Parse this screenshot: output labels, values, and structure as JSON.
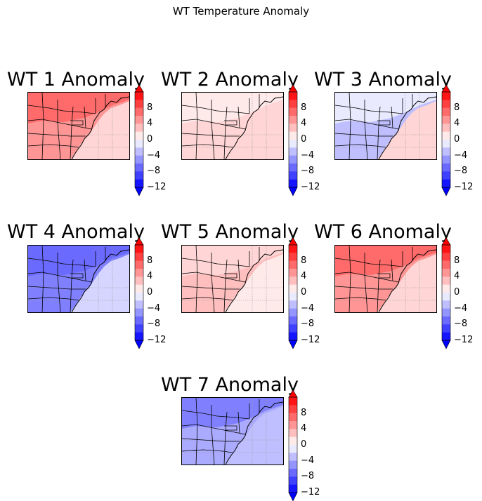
{
  "figure_title": "WT Temperature Anomaly",
  "colorbar": {
    "ticks": [
      "8",
      "4",
      "0",
      "−4",
      "−8",
      "−12"
    ],
    "tick_values": [
      8,
      4,
      0,
      -4,
      -8,
      -12
    ],
    "range": [
      -12,
      12
    ],
    "colormap": "bwr",
    "extend": "both",
    "colors": {
      "low": "#0000ff",
      "mid": "#ffffff",
      "high": "#ff0000"
    }
  },
  "panels": [
    {
      "title": "WT 1 Anomaly",
      "anomaly_pattern": "warm",
      "levels": {
        "north": 7,
        "south": 5,
        "ocean": 2
      }
    },
    {
      "title": "WT 2 Anomaly",
      "anomaly_pattern": "weak-warm",
      "levels": {
        "north": 1,
        "south": 2,
        "ocean": 2
      }
    },
    {
      "title": "WT 3 Anomaly",
      "anomaly_pattern": "cool-west-warm-east",
      "levels": {
        "north": -1,
        "south": -3,
        "ocean": 2
      }
    },
    {
      "title": "WT 4 Anomaly",
      "anomaly_pattern": "cold",
      "levels": {
        "north": -7,
        "south": -6,
        "ocean": -2
      }
    },
    {
      "title": "WT 5 Anomaly",
      "anomaly_pattern": "weak-warm",
      "levels": {
        "north": 2,
        "south": 3,
        "ocean": 1
      }
    },
    {
      "title": "WT 6 Anomaly",
      "anomaly_pattern": "warm",
      "levels": {
        "north": 7,
        "south": 5,
        "ocean": 2
      }
    },
    {
      "title": "WT 7 Anomaly",
      "anomaly_pattern": "cold",
      "levels": {
        "north": -6,
        "south": -4,
        "ocean": -3
      }
    }
  ]
}
